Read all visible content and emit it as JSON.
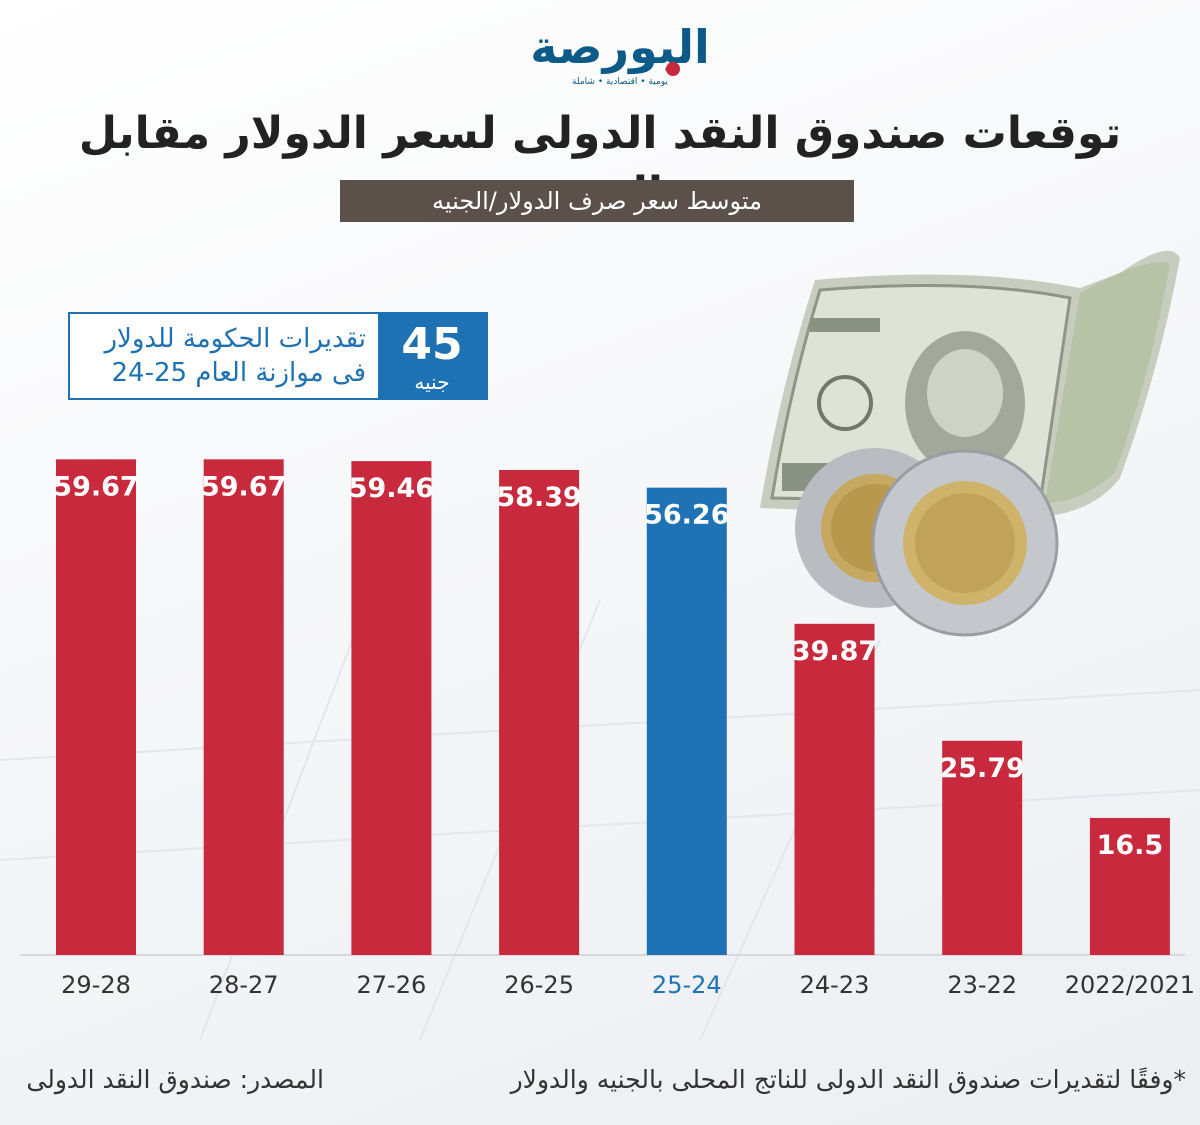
{
  "logo": {
    "name": "البورصة",
    "tagline": "يومية • اقتصادية • شاملة"
  },
  "title": "توقعات صندوق النقد الدولى لسعر الدولار مقابل الجنيه",
  "subtitle": "متوسط سعر صرف الدولار/الجنيه",
  "government_estimate": {
    "value": "45",
    "unit": "جنيه",
    "label_line1": "تقديرات الحكومة للدولار",
    "label_line2": "فى موازنة العام 25-24"
  },
  "colors": {
    "bar": "#c8293d",
    "highlight_bar": "#1f73b4",
    "text_dark": "#333333"
  },
  "chart_data": {
    "type": "bar",
    "categories": [
      "29-28",
      "28-27",
      "27-26",
      "26-25",
      "25-24",
      "24-23",
      "23-22",
      "2022/2021"
    ],
    "values": [
      59.67,
      59.67,
      59.46,
      58.39,
      56.26,
      39.87,
      25.79,
      16.5
    ],
    "value_labels": [
      "59.67",
      "59.67",
      "59.46",
      "58.39",
      "56.26",
      "39.87",
      "25.79",
      "16.5"
    ],
    "highlight_category": "25-24",
    "ylim": [
      0,
      62
    ],
    "grid": false,
    "legend": "none"
  },
  "footnote": "*وفقًا لتقديرات صندوق النقد الدولى للناتج المحلى بالجنيه والدولار",
  "source": "المصدر: صندوق النقد الدولى",
  "decor": {
    "image": "currency-notes-and-coins-illustration"
  }
}
